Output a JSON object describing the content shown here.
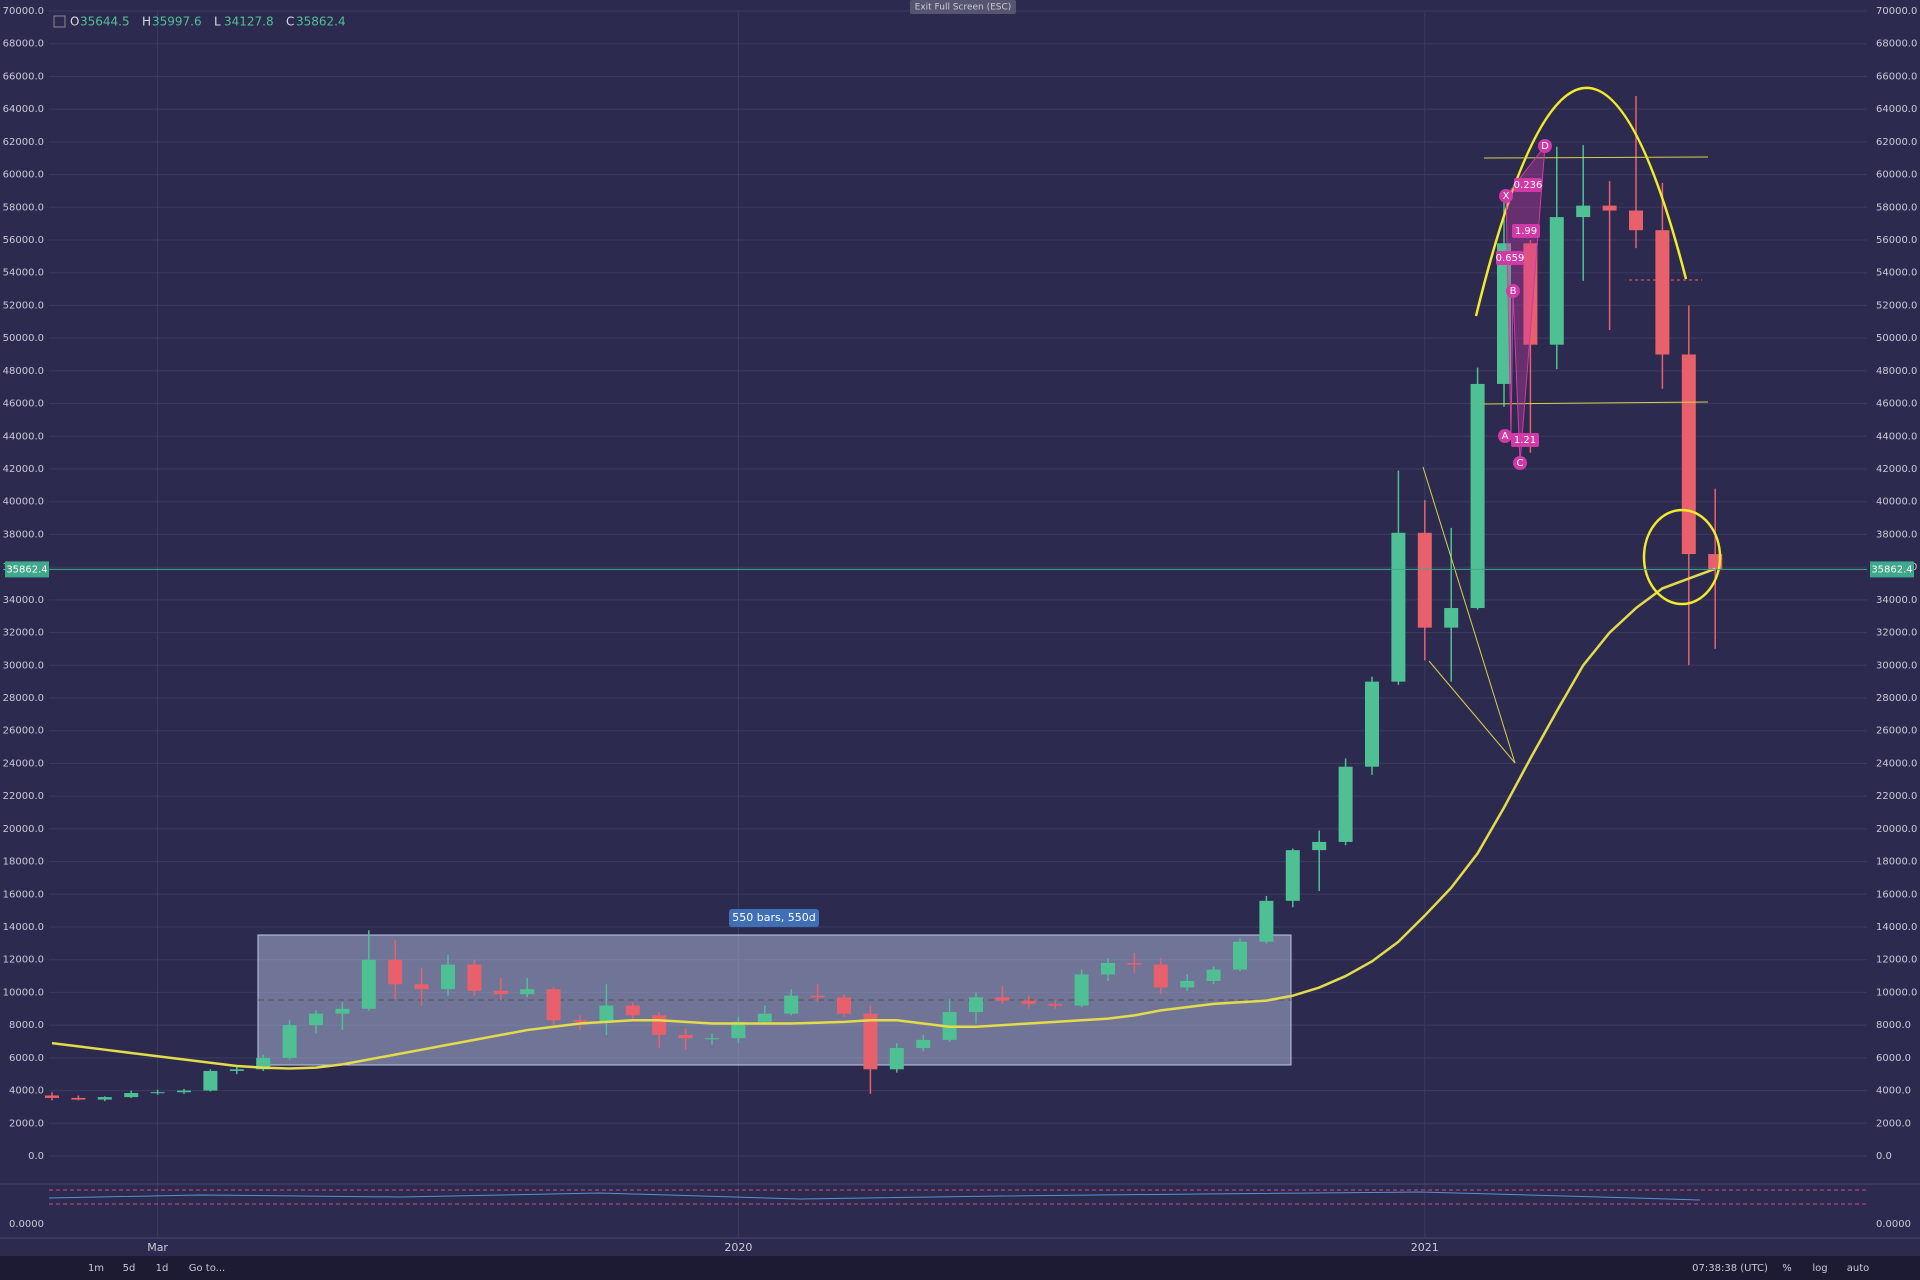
{
  "chart_data": {
    "type": "candlestick",
    "header_labels": [
      "O",
      "H",
      "L",
      "C"
    ],
    "header_values": [
      35644.5,
      35997.6,
      34127.8,
      35862.4
    ],
    "last_price": {
      "value": 35862.4,
      "label": "35862.4"
    },
    "categories": [
      null,
      null,
      null,
      null,
      "Mar",
      null,
      null,
      null,
      null,
      null,
      null,
      null,
      null,
      null,
      null,
      null,
      null,
      null,
      null,
      null,
      null,
      null,
      null,
      null,
      null,
      null,
      "2020",
      null,
      null,
      null,
      null,
      null,
      null,
      null,
      null,
      null,
      null,
      null,
      null,
      null,
      null,
      null,
      null,
      null,
      null,
      null,
      null,
      null,
      null,
      null,
      null,
      null,
      "2021",
      null,
      null,
      null,
      null,
      null,
      null,
      null,
      null,
      null,
      null,
      null
    ],
    "series": [
      {
        "up_color": "#4fbf94",
        "down_color": "#e8606b",
        "values": [
          [
            3700,
            3900,
            3400,
            3550
          ],
          [
            3550,
            3700,
            3400,
            3450
          ],
          [
            3450,
            3650,
            3350,
            3600
          ],
          [
            3600,
            4000,
            3550,
            3850
          ],
          [
            3850,
            4050,
            3750,
            3900
          ],
          [
            3900,
            4100,
            3800,
            4000
          ],
          [
            4000,
            5300,
            3950,
            5200
          ],
          [
            5200,
            5500,
            5000,
            5300
          ],
          [
            5300,
            6200,
            5200,
            6000
          ],
          [
            6000,
            8300,
            5900,
            8000
          ],
          [
            8000,
            8900,
            7500,
            8700
          ],
          [
            8700,
            9400,
            7700,
            9000
          ],
          [
            9000,
            13800,
            8900,
            12000
          ],
          [
            12000,
            13200,
            9600,
            10500
          ],
          [
            10500,
            11500,
            9200,
            10200
          ],
          [
            10200,
            12300,
            9800,
            11700
          ],
          [
            11700,
            12000,
            9800,
            10100
          ],
          [
            10100,
            10900,
            9500,
            9900
          ],
          [
            9900,
            10900,
            9700,
            10200
          ],
          [
            10200,
            10300,
            8000,
            8300
          ],
          [
            8300,
            8600,
            7700,
            8200
          ],
          [
            8200,
            10500,
            7400,
            9200
          ],
          [
            9200,
            9400,
            8400,
            8600
          ],
          [
            8600,
            8800,
            6600,
            7400
          ],
          [
            7400,
            7800,
            6500,
            7200
          ],
          [
            7200,
            7500,
            6800,
            7200
          ],
          [
            7200,
            8500,
            6900,
            8200
          ],
          [
            8200,
            9200,
            8000,
            8700
          ],
          [
            8700,
            10200,
            8600,
            9800
          ],
          [
            9800,
            10500,
            9400,
            9700
          ],
          [
            9700,
            9900,
            8500,
            8700
          ],
          [
            8700,
            9200,
            3800,
            5300
          ],
          [
            5300,
            6900,
            5100,
            6600
          ],
          [
            6600,
            7400,
            6400,
            7100
          ],
          [
            7100,
            9600,
            7000,
            8800
          ],
          [
            8800,
            10000,
            8100,
            9700
          ],
          [
            9700,
            10400,
            9300,
            9500
          ],
          [
            9500,
            9800,
            9000,
            9300
          ],
          [
            9300,
            9500,
            9000,
            9200
          ],
          [
            9200,
            11400,
            9100,
            11100
          ],
          [
            11100,
            12100,
            10700,
            11800
          ],
          [
            11800,
            12400,
            11200,
            11700
          ],
          [
            11700,
            12100,
            9900,
            10300
          ],
          [
            10300,
            11100,
            10100,
            10700
          ],
          [
            10700,
            11600,
            10500,
            11400
          ],
          [
            11400,
            13300,
            11300,
            13100
          ],
          [
            13100,
            15900,
            13000,
            15600
          ],
          [
            15600,
            18800,
            15200,
            18700
          ],
          [
            18700,
            19900,
            16200,
            19200
          ],
          [
            19200,
            24300,
            19000,
            23800
          ],
          [
            23800,
            29300,
            23300,
            29000
          ],
          [
            29000,
            41900,
            28800,
            38100
          ],
          [
            38100,
            40100,
            30300,
            32300
          ],
          [
            32300,
            38400,
            29000,
            33500
          ],
          [
            33500,
            48200,
            33400,
            47200
          ],
          [
            47200,
            58300,
            45800,
            55800
          ],
          [
            55800,
            56000,
            43000,
            49600
          ],
          [
            49600,
            61700,
            48100,
            57400
          ],
          [
            57400,
            61800,
            53500,
            58100
          ],
          [
            58100,
            59600,
            50500,
            57800
          ],
          [
            57800,
            64800,
            55500,
            56600
          ],
          [
            56600,
            59500,
            46900,
            49000
          ],
          [
            49000,
            52000,
            30000,
            36800
          ],
          [
            36800,
            40800,
            31000,
            35862.4
          ]
        ]
      },
      {
        "type": "line",
        "color": "#e3dc4a",
        "values": [
          6900,
          6700,
          6500,
          6300,
          6100,
          5900,
          5700,
          5500,
          5400,
          5350,
          5400,
          5600,
          5900,
          6200,
          6500,
          6800,
          7100,
          7400,
          7700,
          7900,
          8100,
          8200,
          8300,
          8300,
          8200,
          8100,
          8100,
          8100,
          8100,
          8150,
          8200,
          8300,
          8300,
          8100,
          7900,
          7900,
          8000,
          8100,
          8200,
          8300,
          8400,
          8600,
          8900,
          9100,
          9300,
          9400,
          9500,
          9800,
          10300,
          11000,
          11900,
          13100,
          14700,
          16400,
          18500,
          21300,
          24300,
          27200,
          30000,
          32000,
          33500,
          34700,
          35300,
          35900
        ]
      }
    ],
    "ylim": [
      0,
      70000
    ],
    "yticks": [
      {
        "value": 0,
        "label": "0.0"
      },
      {
        "value": 2000,
        "label": "2000.0"
      },
      {
        "value": 4000,
        "label": "4000.0"
      },
      {
        "value": 6000,
        "label": "6000.0"
      },
      {
        "value": 8000,
        "label": "8000.0"
      },
      {
        "value": 10000,
        "label": "10000.0"
      },
      {
        "value": 12000,
        "label": "12000.0"
      },
      {
        "value": 14000,
        "label": "14000.0"
      },
      {
        "value": 16000,
        "label": "16000.0"
      },
      {
        "value": 18000,
        "label": "18000.0"
      },
      {
        "value": 20000,
        "label": "20000.0"
      },
      {
        "value": 22000,
        "label": "22000.0"
      },
      {
        "value": 24000,
        "label": "24000.0"
      },
      {
        "value": 26000,
        "label": "26000.0"
      },
      {
        "value": 28000,
        "label": "28000.0"
      },
      {
        "value": 30000,
        "label": "30000.0"
      },
      {
        "value": 32000,
        "label": "32000.0"
      },
      {
        "value": 34000,
        "label": "34000.0"
      },
      {
        "value": 36000,
        "label": "36000.0"
      },
      {
        "value": 38000,
        "label": "38000.0"
      },
      {
        "value": 40000,
        "label": "40000.0"
      },
      {
        "value": 42000,
        "label": "42000.0"
      },
      {
        "value": 44000,
        "label": "44000.0"
      },
      {
        "value": 46000,
        "label": "46000.0"
      },
      {
        "value": 48000,
        "label": "48000.0"
      },
      {
        "value": 50000,
        "label": "50000.0"
      },
      {
        "value": 52000,
        "label": "52000.0"
      },
      {
        "value": 54000,
        "label": "54000.0"
      },
      {
        "value": 56000,
        "label": "56000.0"
      },
      {
        "value": 58000,
        "label": "58000.0"
      },
      {
        "value": 60000,
        "label": "60000.0"
      },
      {
        "value": 62000,
        "label": "62000.0"
      },
      {
        "value": 64000,
        "label": "64000.0"
      },
      {
        "value": 66000,
        "label": "66000.0"
      },
      {
        "value": 68000,
        "label": "68000.0"
      },
      {
        "value": 70000,
        "label": "70000.0"
      }
    ],
    "grid": true,
    "indicator_yticks": [
      {
        "value": 0,
        "label": "0.0000"
      }
    ],
    "annotations": {
      "range_label": "550 bars, 550d",
      "pattern_points": [
        "X",
        "A",
        "B",
        "C",
        "D"
      ],
      "ratios": [
        "0.236",
        "1.99",
        "0.659",
        "1.21"
      ]
    }
  },
  "ui": {
    "exit_fullscreen": "Exit Full Screen (ESC)",
    "toolbar": [
      "1m",
      "5d",
      "1d",
      "Go to..."
    ],
    "clock": "07:38:38 (UTC)",
    "toggles": [
      "%",
      "log",
      "auto"
    ]
  }
}
